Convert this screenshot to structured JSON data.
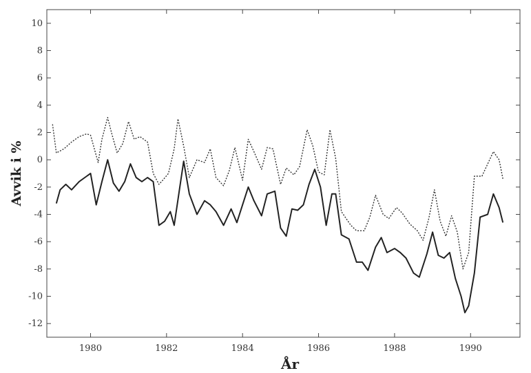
{
  "chart_data": {
    "type": "line",
    "title": "",
    "xlabel": "År",
    "ylabel": "Avvik i %",
    "xlim": [
      1978.85,
      1991.3
    ],
    "ylim": [
      -13,
      11
    ],
    "x_ticks": [
      1980,
      1982,
      1984,
      1986,
      1988,
      1990
    ],
    "x_tick_labels": [
      "1980",
      "1982",
      "1984",
      "1986",
      "1988",
      "1990"
    ],
    "y_ticks": [
      10,
      8,
      6,
      4,
      2,
      0,
      -2,
      -4,
      -6,
      -8,
      -10,
      -12
    ],
    "y_tick_labels": [
      "10",
      "8",
      "6",
      "4",
      "2",
      "0",
      "-2",
      "-4",
      "-6",
      "-8",
      "-10",
      "-12"
    ],
    "grid": false,
    "legend": "none",
    "series": [
      {
        "style": "dotted",
        "x": [
          1979.0,
          1979.1,
          1979.3,
          1979.5,
          1979.7,
          1979.9,
          1980.0,
          1980.2,
          1980.3,
          1980.45,
          1980.55,
          1980.7,
          1980.85,
          1981.0,
          1981.15,
          1981.3,
          1981.5,
          1981.65,
          1981.8,
          1981.9,
          1982.05,
          1982.2,
          1982.3,
          1982.45,
          1982.6,
          1982.8,
          1983.0,
          1983.15,
          1983.3,
          1983.5,
          1983.65,
          1983.8,
          1984.0,
          1984.15,
          1984.3,
          1984.5,
          1984.65,
          1984.8,
          1985.0,
          1985.15,
          1985.35,
          1985.5,
          1985.7,
          1985.85,
          1986.0,
          1986.15,
          1986.3,
          1986.45,
          1986.6,
          1986.85,
          1987.0,
          1987.2,
          1987.35,
          1987.5,
          1987.7,
          1987.85,
          1988.05,
          1988.2,
          1988.4,
          1988.6,
          1988.75,
          1988.9,
          1989.05,
          1989.2,
          1989.35,
          1989.5,
          1989.65,
          1989.8,
          1989.95,
          1990.1,
          1990.3,
          1990.5,
          1990.6,
          1990.75,
          1990.85
        ],
        "y": [
          2.6,
          0.5,
          0.8,
          1.3,
          1.7,
          1.9,
          1.8,
          -0.2,
          1.5,
          3.1,
          2.0,
          0.5,
          1.2,
          2.8,
          1.5,
          1.7,
          1.3,
          -1.0,
          -1.8,
          -1.5,
          -1.0,
          0.8,
          3.0,
          1.0,
          -1.3,
          0.0,
          -0.2,
          0.8,
          -1.3,
          -1.9,
          -0.8,
          0.9,
          -1.5,
          1.5,
          0.6,
          -0.7,
          0.9,
          0.8,
          -1.8,
          -0.6,
          -1.1,
          -0.5,
          2.2,
          1.0,
          -0.9,
          -1.1,
          2.2,
          0.1,
          -3.8,
          -4.8,
          -5.2,
          -5.2,
          -4.2,
          -2.6,
          -4.0,
          -4.3,
          -3.5,
          -3.9,
          -4.7,
          -5.2,
          -5.9,
          -4.3,
          -2.2,
          -4.5,
          -5.6,
          -4.1,
          -5.3,
          -8.0,
          -6.8,
          -1.2,
          -1.2,
          0.0,
          0.6,
          0.0,
          -1.4
        ]
      },
      {
        "style": "solid",
        "x": [
          1979.1,
          1979.2,
          1979.35,
          1979.5,
          1979.7,
          1979.9,
          1980.0,
          1980.15,
          1980.3,
          1980.45,
          1980.6,
          1980.75,
          1980.9,
          1981.05,
          1981.2,
          1981.35,
          1981.5,
          1981.65,
          1981.8,
          1981.95,
          1982.1,
          1982.2,
          1982.35,
          1982.45,
          1982.6,
          1982.8,
          1983.0,
          1983.15,
          1983.3,
          1983.5,
          1983.7,
          1983.85,
          1984.0,
          1984.15,
          1984.3,
          1984.5,
          1984.65,
          1984.85,
          1985.0,
          1985.15,
          1985.3,
          1985.45,
          1985.6,
          1985.75,
          1985.9,
          1986.05,
          1986.2,
          1986.35,
          1986.45,
          1986.6,
          1986.8,
          1987.0,
          1987.15,
          1987.3,
          1987.5,
          1987.65,
          1987.8,
          1988.0,
          1988.15,
          1988.3,
          1988.5,
          1988.65,
          1988.85,
          1989.0,
          1989.15,
          1989.3,
          1989.45,
          1989.6,
          1989.75,
          1989.85,
          1989.95,
          1990.1,
          1990.25,
          1990.45,
          1990.6,
          1990.75,
          1990.85
        ],
        "y": [
          -3.2,
          -2.2,
          -1.8,
          -2.2,
          -1.6,
          -1.2,
          -1.0,
          -3.3,
          -1.6,
          0.0,
          -1.7,
          -2.3,
          -1.6,
          -0.3,
          -1.3,
          -1.6,
          -1.3,
          -1.6,
          -4.8,
          -4.5,
          -3.8,
          -4.8,
          -2.0,
          -0.1,
          -2.5,
          -4.0,
          -3.0,
          -3.3,
          -3.8,
          -4.8,
          -3.6,
          -4.6,
          -3.3,
          -2.0,
          -3.0,
          -4.1,
          -2.5,
          -2.3,
          -5.0,
          -5.6,
          -3.6,
          -3.7,
          -3.3,
          -1.8,
          -0.7,
          -2.0,
          -4.8,
          -2.5,
          -2.5,
          -5.5,
          -5.8,
          -7.5,
          -7.5,
          -8.1,
          -6.4,
          -5.7,
          -6.8,
          -6.5,
          -6.8,
          -7.2,
          -8.3,
          -8.6,
          -6.9,
          -5.3,
          -7.0,
          -7.2,
          -6.8,
          -8.7,
          -10.0,
          -11.2,
          -10.7,
          -8.3,
          -4.2,
          -4.0,
          -2.5,
          -3.5,
          -4.6
        ]
      }
    ]
  }
}
